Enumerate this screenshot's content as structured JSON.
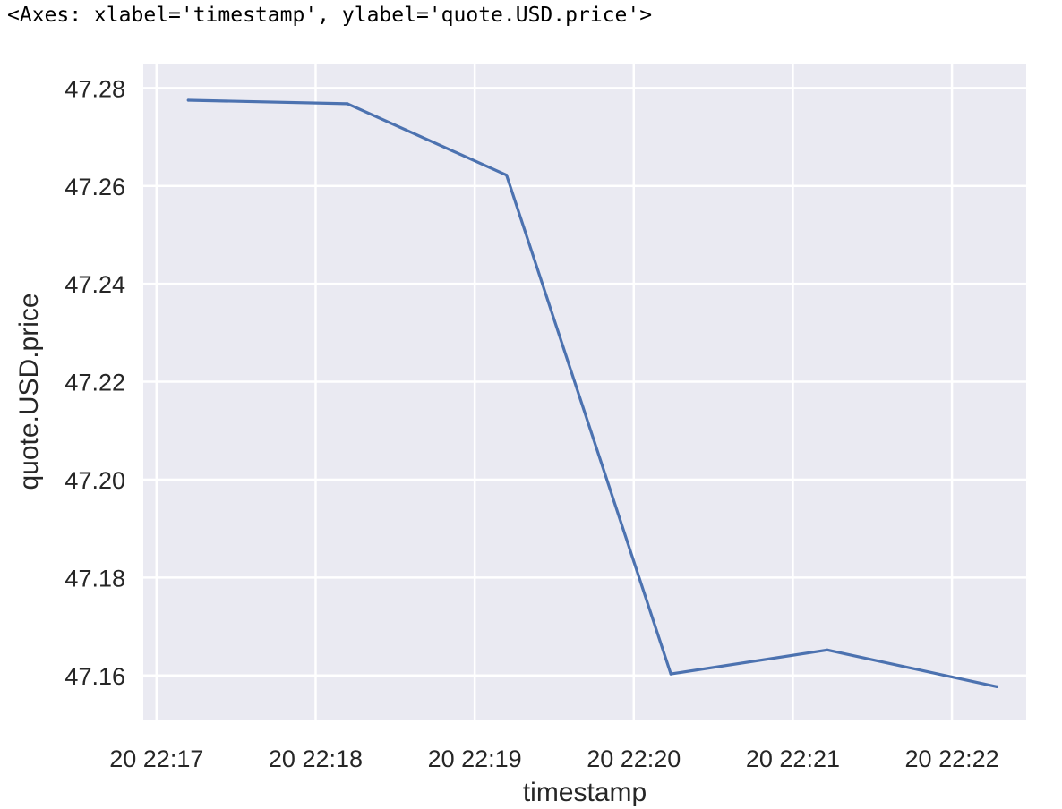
{
  "output_repr": "<Axes: xlabel='timestamp', ylabel='quote.USD.price'>",
  "chart_data": {
    "type": "line",
    "title": "",
    "xlabel": "timestamp",
    "ylabel": "quote.USD.price",
    "x_tick_labels": [
      "20 22:17",
      "20 22:18",
      "20 22:19",
      "20 22:20",
      "20 22:21",
      "20 22:22"
    ],
    "y_tick_labels": [
      "47.28",
      "47.26",
      "47.24",
      "47.22",
      "47.20",
      "47.18",
      "47.16"
    ],
    "y_ticks": [
      47.28,
      47.26,
      47.24,
      47.22,
      47.2,
      47.18,
      47.16
    ],
    "series": [
      {
        "x": [
          "22:17:12",
          "22:18:12",
          "22:19:12",
          "22:20:14",
          "22:21:13",
          "22:22:17"
        ],
        "y": [
          47.2775,
          47.2768,
          47.2622,
          47.1603,
          47.1652,
          47.1577
        ]
      }
    ],
    "ylim": [
      47.151,
      47.285
    ],
    "xlim": [
      "22:16:55",
      "22:22:28"
    ],
    "grid": true,
    "colors": {
      "background": "#eaeaf2",
      "grid": "#ffffff",
      "line": "#4c72b0"
    }
  }
}
